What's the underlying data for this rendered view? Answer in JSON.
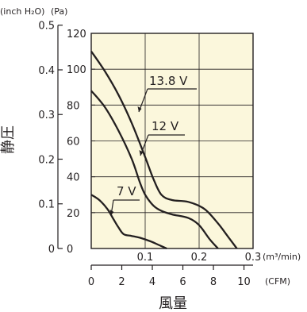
{
  "chart_data": {
    "type": "line",
    "title": "",
    "ylabel": "静圧",
    "xlabel": "風量",
    "plot_background": "#fbf7dc",
    "line_color": "#231f20",
    "y_pa_axis": {
      "unit": "(Pa)",
      "range": [
        0,
        120
      ],
      "ticks": [
        0,
        20,
        40,
        60,
        80,
        100,
        120
      ],
      "tick_labels": [
        "0",
        "20",
        "40",
        "60",
        "80",
        "100",
        "120"
      ]
    },
    "y_inch_axis": {
      "unit": "(inch H₂O)",
      "ticks": [
        0,
        0.1,
        0.2,
        0.3,
        0.4,
        0.5
      ],
      "tick_labels": [
        "0",
        "0.1",
        "0.2",
        "0.3",
        "0.4",
        "0.5"
      ]
    },
    "x_m3_axis": {
      "unit": "(m³/min)",
      "range": [
        0,
        0.3
      ],
      "ticks": [
        0,
        0.1,
        0.2,
        0.3
      ],
      "tick_labels": [
        "0",
        "0.1",
        "0.2",
        "0.3"
      ]
    },
    "x_cfm_axis": {
      "unit": "(CFM)",
      "ticks": [
        0,
        2,
        4,
        6,
        8,
        10
      ],
      "tick_labels": [
        "0",
        "2",
        "4",
        "6",
        "8",
        "10"
      ]
    },
    "grid": true,
    "series": [
      {
        "name": "13.8 V",
        "x": [
          0,
          0.025,
          0.05,
          0.075,
          0.1,
          0.115,
          0.13,
          0.15,
          0.18,
          0.21,
          0.235,
          0.255,
          0.27
        ],
        "y": [
          110,
          99,
          86,
          70,
          51,
          39,
          30,
          27,
          26,
          22,
          14,
          6,
          0
        ]
      },
      {
        "name": "12 V",
        "x": [
          0,
          0.025,
          0.05,
          0.075,
          0.09,
          0.1,
          0.115,
          0.13,
          0.15,
          0.18,
          0.2,
          0.22,
          0.235
        ],
        "y": [
          88,
          79,
          66,
          50,
          37,
          30,
          24,
          21,
          19,
          17,
          13,
          5,
          0
        ]
      },
      {
        "name": "7 V",
        "x": [
          0,
          0.015,
          0.03,
          0.04,
          0.05,
          0.06,
          0.075,
          0.09,
          0.11,
          0.125,
          0.14
        ],
        "y": [
          30,
          27,
          22,
          17,
          12,
          8,
          7,
          6,
          4,
          2,
          0
        ]
      }
    ]
  }
}
